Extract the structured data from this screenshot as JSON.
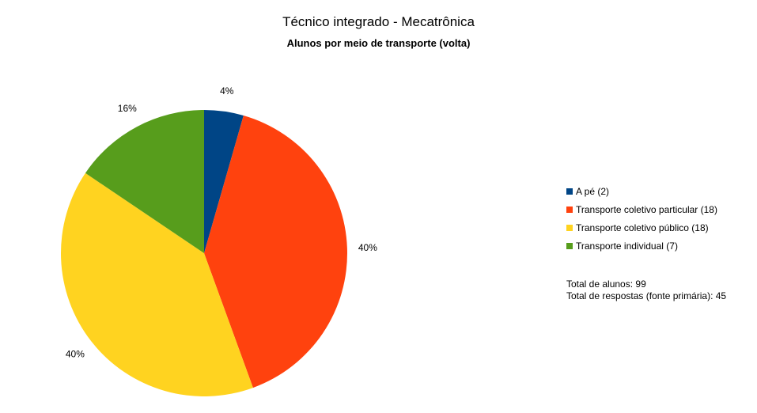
{
  "chart_data": {
    "type": "pie",
    "title": "Técnico integrado - Mecatrônica",
    "subtitle": "Alunos por meio de transporte (volta)",
    "slices": [
      {
        "label": "A pé (2)",
        "value": 2,
        "percent_label": "4%",
        "color": "#004586"
      },
      {
        "label": "Transporte coletivo particular (18)",
        "value": 18,
        "percent_label": "40%",
        "color": "#ff420e"
      },
      {
        "label": "Transporte coletivo público (18)",
        "value": 18,
        "percent_label": "40%",
        "color": "#ffd320"
      },
      {
        "label": "Transporte individual (7)",
        "value": 7,
        "percent_label": "16%",
        "color": "#579d1c"
      }
    ],
    "legend_position": "right",
    "notes": [
      "Total de alunos: 99",
      "Total de respostas (fonte primária): 45"
    ]
  }
}
